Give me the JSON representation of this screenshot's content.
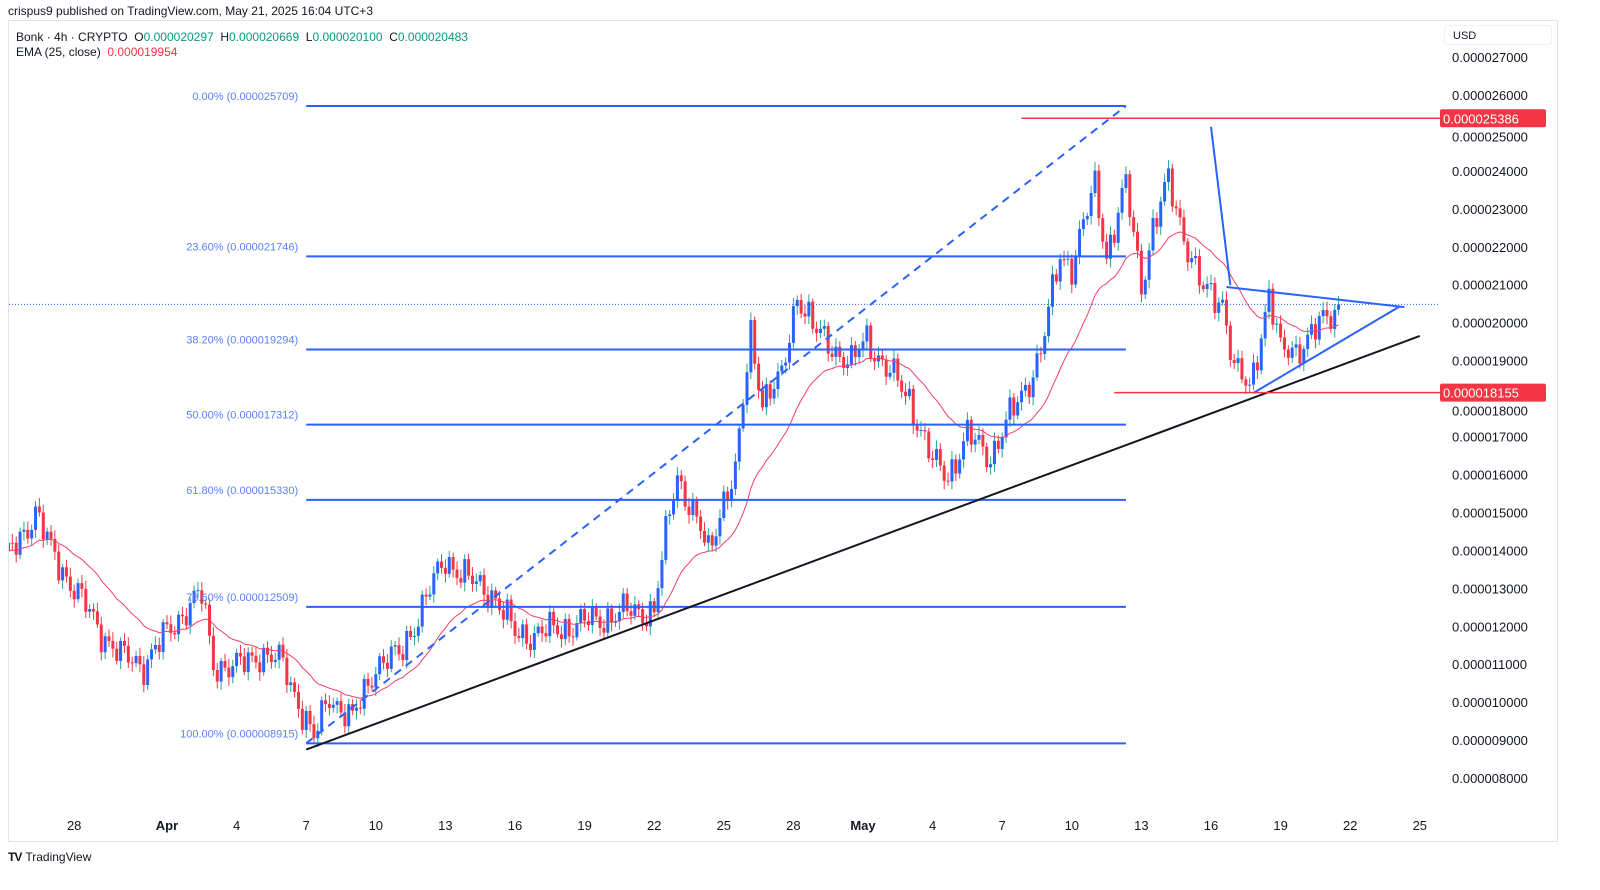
{
  "publication": "crispus9 published on TradingView.com, May 21, 2025 16:04 UTC+3",
  "legend": {
    "symbol": "Bonk · 4h · CRYPTO",
    "open_label": "O",
    "open": "0.000020297",
    "high_label": "H",
    "high": "0.000020669",
    "low_label": "L",
    "low": "0.000020100",
    "close_label": "C",
    "close": "0.000020483",
    "ema_label": "EMA (25, close)",
    "ema": "0.000019954"
  },
  "currency": "USD",
  "brand": "TradingView",
  "colors": {
    "up": "#2962ff",
    "down": "#f23645",
    "ema": "#f23f6b",
    "fib": "#2962ff",
    "trend": "#131722",
    "level": "#f23645"
  },
  "chart_data": {
    "type": "candlestick",
    "timeframe": "4h",
    "price_unit": "1e-6 USD",
    "ylim": [
      7.5,
      27.5
    ],
    "yticks": [
      "0.000008000",
      "0.000009000",
      "0.000010000",
      "0.000011000",
      "0.000012000",
      "0.000013000",
      "0.000014000",
      "0.000015000",
      "0.000016000",
      "0.000017000",
      "0.000018000",
      "0.000019000",
      "0.000020000",
      "0.000021000",
      "0.000022000",
      "0.000023000",
      "0.000024000",
      "0.000025000",
      "0.000026000",
      "0.000027000"
    ],
    "xticks": [
      {
        "date": "2025-03-28",
        "label": "28",
        "bold": false
      },
      {
        "date": "2025-04-01",
        "label": "Apr",
        "bold": true
      },
      {
        "date": "2025-04-04",
        "label": "4",
        "bold": false
      },
      {
        "date": "2025-04-07",
        "label": "7",
        "bold": false
      },
      {
        "date": "2025-04-10",
        "label": "10",
        "bold": false
      },
      {
        "date": "2025-04-13",
        "label": "13",
        "bold": false
      },
      {
        "date": "2025-04-16",
        "label": "16",
        "bold": false
      },
      {
        "date": "2025-04-19",
        "label": "19",
        "bold": false
      },
      {
        "date": "2025-04-22",
        "label": "22",
        "bold": false
      },
      {
        "date": "2025-04-25",
        "label": "25",
        "bold": false
      },
      {
        "date": "2025-04-28",
        "label": "28",
        "bold": false
      },
      {
        "date": "2025-05-01",
        "label": "May",
        "bold": true
      },
      {
        "date": "2025-05-04",
        "label": "4",
        "bold": false
      },
      {
        "date": "2025-05-07",
        "label": "7",
        "bold": false
      },
      {
        "date": "2025-05-10",
        "label": "10",
        "bold": false
      },
      {
        "date": "2025-05-13",
        "label": "13",
        "bold": false
      },
      {
        "date": "2025-05-16",
        "label": "16",
        "bold": false
      },
      {
        "date": "2025-05-19",
        "label": "19",
        "bold": false
      },
      {
        "date": "2025-05-22",
        "label": "22",
        "bold": false
      },
      {
        "date": "2025-05-25",
        "label": "25",
        "bold": false
      }
    ],
    "approx_close_path": [
      [
        "2025-03-25T00:00",
        13.7
      ],
      [
        "2025-03-26T08:00",
        15.0
      ],
      [
        "2025-03-27T00:00",
        14.0
      ],
      [
        "2025-03-28T00:00",
        13.0
      ],
      [
        "2025-03-29T00:00",
        12.0
      ],
      [
        "2025-03-30T00:00",
        11.2
      ],
      [
        "2025-03-31T00:00",
        11.0
      ],
      [
        "2025-04-01T00:00",
        11.8
      ],
      [
        "2025-04-02T00:00",
        12.6
      ],
      [
        "2025-04-02T12:00",
        12.8
      ],
      [
        "2025-04-03T00:00",
        11.0
      ],
      [
        "2025-04-04T00:00",
        10.9
      ],
      [
        "2025-04-05T00:00",
        11.3
      ],
      [
        "2025-04-06T00:00",
        11.0
      ],
      [
        "2025-04-06T16:00",
        10.0
      ],
      [
        "2025-04-07T08:00",
        9.0
      ],
      [
        "2025-04-08T00:00",
        10.2
      ],
      [
        "2025-04-09T00:00",
        9.5
      ],
      [
        "2025-04-10T00:00",
        11.0
      ],
      [
        "2025-04-11T00:00",
        11.2
      ],
      [
        "2025-04-12T00:00",
        12.5
      ],
      [
        "2025-04-13T00:00",
        13.8
      ],
      [
        "2025-04-14T00:00",
        13.2
      ],
      [
        "2025-04-15T00:00",
        12.9
      ],
      [
        "2025-04-16T00:00",
        11.8
      ],
      [
        "2025-04-17T00:00",
        11.8
      ],
      [
        "2025-04-19T00:00",
        12.1
      ],
      [
        "2025-04-21T00:00",
        12.4
      ],
      [
        "2025-04-22T00:00",
        12.4
      ],
      [
        "2025-04-22T16:00",
        15.0
      ],
      [
        "2025-04-23T00:00",
        16.0
      ],
      [
        "2025-04-24T00:00",
        14.5
      ],
      [
        "2025-04-24T08:00",
        13.9
      ],
      [
        "2025-04-25T00:00",
        15.4
      ],
      [
        "2025-04-25T12:00",
        16.0
      ],
      [
        "2025-04-26T04:00",
        19.7
      ],
      [
        "2025-04-26T16:00",
        18.0
      ],
      [
        "2025-04-27T12:00",
        18.5
      ],
      [
        "2025-04-28T04:00",
        20.8
      ],
      [
        "2025-04-29T00:00",
        19.7
      ],
      [
        "2025-04-30T00:00",
        19.2
      ],
      [
        "2025-04-30T12:00",
        18.9
      ],
      [
        "2025-05-01T04:00",
        19.6
      ],
      [
        "2025-05-02T00:00",
        18.8
      ],
      [
        "2025-05-03T00:00",
        18.0
      ],
      [
        "2025-05-04T00:00",
        16.3
      ],
      [
        "2025-05-04T16:00",
        16.0
      ],
      [
        "2025-05-05T12:00",
        17.0
      ],
      [
        "2025-05-06T12:00",
        16.5
      ],
      [
        "2025-05-07T00:00",
        17.1
      ],
      [
        "2025-05-08T00:00",
        18.3
      ],
      [
        "2025-05-08T16:00",
        19.2
      ],
      [
        "2025-05-09T12:00",
        21.8
      ],
      [
        "2025-05-10T00:00",
        21.5
      ],
      [
        "2025-05-11T00:00",
        23.6
      ],
      [
        "2025-05-11T12:00",
        21.8
      ],
      [
        "2025-05-12T08:00",
        23.6
      ],
      [
        "2025-05-13T00:00",
        21.0
      ],
      [
        "2025-05-13T12:00",
        22.5
      ],
      [
        "2025-05-14T04:00",
        23.7
      ],
      [
        "2025-05-15T00:00",
        22.0
      ],
      [
        "2025-05-15T16:00",
        20.8
      ],
      [
        "2025-05-16T12:00",
        20.6
      ],
      [
        "2025-05-17T00:00",
        18.8
      ],
      [
        "2025-05-17T16:00",
        18.2
      ],
      [
        "2025-05-18T12:00",
        20.8
      ],
      [
        "2025-05-19T00:00",
        19.2
      ],
      [
        "2025-05-19T16:00",
        19.3
      ],
      [
        "2025-05-20T12:00",
        19.8
      ],
      [
        "2025-05-21T04:00",
        20.2
      ],
      [
        "2025-05-21T12:00",
        20.483
      ]
    ],
    "ema_period": 25,
    "last_price": 20.483,
    "fib": {
      "start": "2025-04-07T00:00",
      "end": "2025-05-12T08:00",
      "levels": [
        {
          "label": "0.00% (0.000025709)",
          "price": 25.709
        },
        {
          "label": "23.60% (0.000021746)",
          "price": 21.746
        },
        {
          "label": "38.20% (0.000019294)",
          "price": 19.294
        },
        {
          "label": "50.00% (0.000017312)",
          "price": 17.312
        },
        {
          "label": "61.80% (0.000015330)",
          "price": 15.33
        },
        {
          "label": "78.60% (0.000012509)",
          "price": 12.509
        },
        {
          "label": "100.00% (0.000008915)",
          "price": 8.915
        }
      ]
    },
    "levels": [
      {
        "label": "0.000025386",
        "price": 25.386,
        "from": "2025-05-07T20:00"
      },
      {
        "label": "0.000018155",
        "price": 18.155,
        "from": "2025-05-11T20:00"
      }
    ],
    "trendlines": [
      {
        "name": "fib-diagonal",
        "color": "fib",
        "dashed": true,
        "p1": [
          "2025-04-07T00:00",
          8.915
        ],
        "p2": [
          "2025-05-12T08:00",
          25.709
        ]
      },
      {
        "name": "support-trendline",
        "color": "trend",
        "dashed": false,
        "p1": [
          "2025-04-07T00:00",
          8.75
        ],
        "p2": [
          "2025-05-25T00:00",
          19.65
        ]
      },
      {
        "name": "triangle-upper",
        "color": "fib",
        "dashed": false,
        "p1": [
          "2025-05-16T16:00",
          20.94
        ],
        "p2": [
          "2025-05-24T08:00",
          20.41
        ]
      },
      {
        "name": "triangle-lower",
        "color": "fib",
        "dashed": false,
        "p1": [
          "2025-05-17T20:00",
          18.15
        ],
        "p2": [
          "2025-05-24T04:00",
          20.44
        ]
      },
      {
        "name": "steep-downtrend",
        "color": "fib",
        "dashed": false,
        "p1": [
          "2025-05-16T00:00",
          25.16
        ],
        "p2": [
          "2025-05-16T20:00",
          20.99
        ]
      }
    ]
  }
}
